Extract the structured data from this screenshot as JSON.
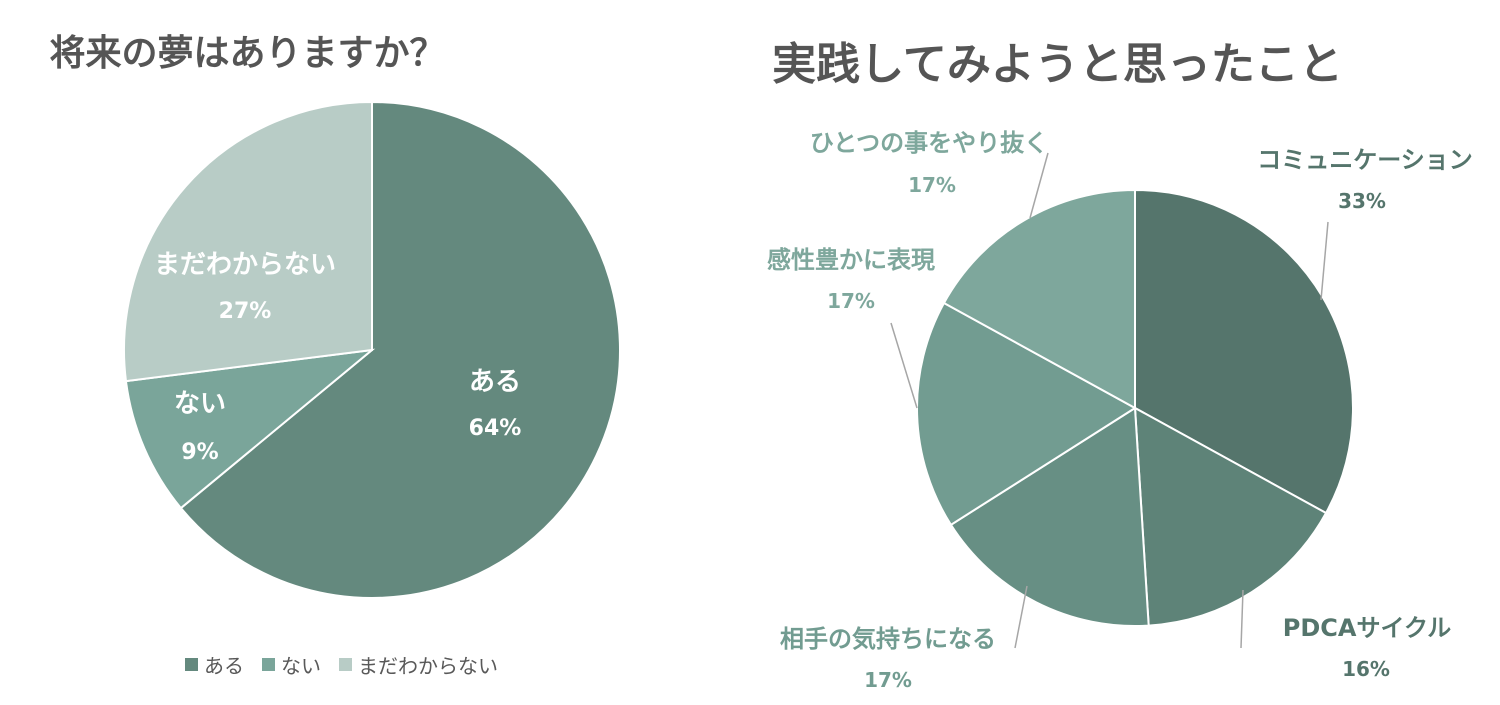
{
  "chart_data": [
    {
      "type": "pie",
      "title": "将来の夢はありますか？",
      "slices": [
        {
          "label": "ある",
          "value": 64,
          "pct_label": "64%",
          "color": "#64897e"
        },
        {
          "label": "ない",
          "value": 9,
          "pct_label": "9%",
          "color": "#7aa59a"
        },
        {
          "label": "まだわからない",
          "value": 27,
          "pct_label": "27%",
          "color": "#b8ccc6"
        }
      ],
      "legend": {
        "placement": "bottom",
        "items": [
          "ある",
          "ない",
          "まだわからない"
        ]
      },
      "label_color": "#ffffff"
    },
    {
      "type": "pie",
      "title": "実践してみようと思ったこと",
      "slices": [
        {
          "label": "コミュニケーション",
          "value": 33,
          "pct_label": "33%",
          "color": "#55756c"
        },
        {
          "label": "PDCAサイクル",
          "value": 16,
          "pct_label": "16%",
          "color": "#5e8378"
        },
        {
          "label": "相手の気持ちになる",
          "value": 17,
          "pct_label": "17%",
          "color": "#678f84"
        },
        {
          "label": "感性豊かに表現",
          "value": 17,
          "pct_label": "17%",
          "color": "#729c91"
        },
        {
          "label": "ひとつの事をやり抜く",
          "value": 17,
          "pct_label": "17%",
          "color": "#7ea79c"
        }
      ],
      "label_colors": [
        "#55756c",
        "#55756c",
        "#729c91",
        "#7ea79c",
        "#7ea79c"
      ]
    }
  ]
}
